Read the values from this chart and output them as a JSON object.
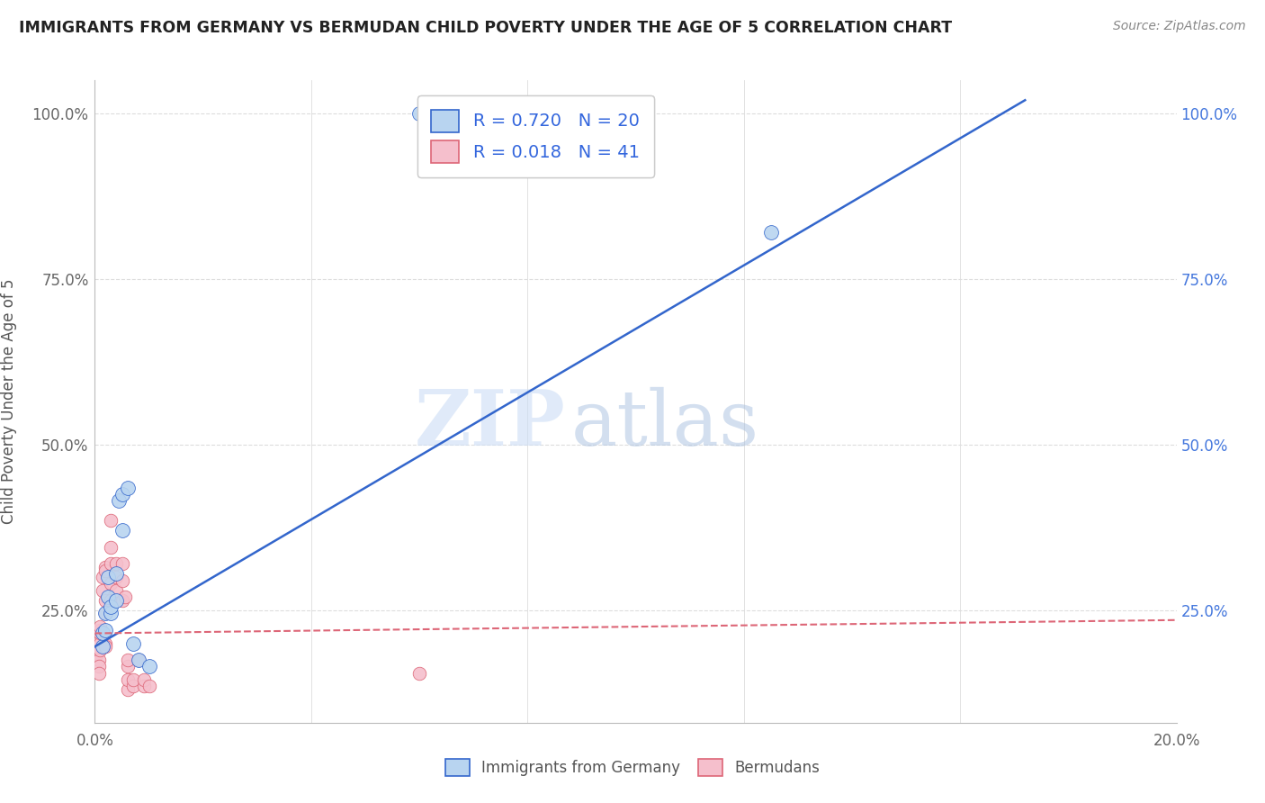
{
  "title": "IMMIGRANTS FROM GERMANY VS BERMUDAN CHILD POVERTY UNDER THE AGE OF 5 CORRELATION CHART",
  "source": "Source: ZipAtlas.com",
  "ylabel": "Child Poverty Under the Age of 5",
  "legend_labels": [
    "Immigrants from Germany",
    "Bermudans"
  ],
  "r_blue": 0.72,
  "n_blue": 20,
  "r_pink": 0.018,
  "n_pink": 41,
  "blue_color": "#b8d4f0",
  "pink_color": "#f5bfcc",
  "line_blue": "#3366cc",
  "line_pink": "#dd6677",
  "watermark_zip": "ZIP",
  "watermark_atlas": "atlas",
  "blue_line_x0": 0.0,
  "blue_line_y0": 0.195,
  "blue_line_x1": 0.172,
  "blue_line_y1": 1.02,
  "pink_line_x0": 0.0,
  "pink_line_y0": 0.215,
  "pink_line_x1": 0.2,
  "pink_line_y1": 0.235,
  "blue_points_x": [
    0.0015,
    0.0015,
    0.002,
    0.002,
    0.0025,
    0.0025,
    0.003,
    0.003,
    0.004,
    0.004,
    0.0045,
    0.005,
    0.005,
    0.006,
    0.007,
    0.008,
    0.01,
    0.06,
    0.062,
    0.125
  ],
  "blue_points_y": [
    0.195,
    0.215,
    0.22,
    0.245,
    0.27,
    0.3,
    0.245,
    0.255,
    0.265,
    0.305,
    0.415,
    0.425,
    0.37,
    0.435,
    0.2,
    0.175,
    0.165,
    1.0,
    1.0,
    0.82
  ],
  "pink_points_x": [
    0.0005,
    0.0005,
    0.0007,
    0.0007,
    0.0008,
    0.001,
    0.001,
    0.001,
    0.001,
    0.001,
    0.0015,
    0.0015,
    0.002,
    0.002,
    0.002,
    0.002,
    0.002,
    0.002,
    0.003,
    0.003,
    0.003,
    0.003,
    0.003,
    0.004,
    0.004,
    0.004,
    0.005,
    0.005,
    0.005,
    0.0055,
    0.006,
    0.006,
    0.006,
    0.006,
    0.007,
    0.007,
    0.008,
    0.009,
    0.009,
    0.01,
    0.06
  ],
  "pink_points_y": [
    0.2,
    0.185,
    0.175,
    0.165,
    0.155,
    0.2,
    0.215,
    0.22,
    0.225,
    0.19,
    0.28,
    0.3,
    0.315,
    0.31,
    0.2,
    0.195,
    0.245,
    0.265,
    0.385,
    0.345,
    0.32,
    0.29,
    0.265,
    0.3,
    0.32,
    0.28,
    0.295,
    0.265,
    0.32,
    0.27,
    0.13,
    0.145,
    0.165,
    0.175,
    0.135,
    0.145,
    0.175,
    0.135,
    0.145,
    0.135,
    0.155
  ],
  "xlim": [
    0.0,
    0.2
  ],
  "ylim": [
    0.08,
    1.05
  ],
  "x_ticks": [
    0.0,
    0.04,
    0.08,
    0.12,
    0.16,
    0.2
  ],
  "x_tick_labels": [
    "0.0%",
    "",
    "",
    "",
    "",
    "20.0%"
  ],
  "y_ticks_left": [
    0.25,
    0.5,
    0.75,
    1.0
  ],
  "y_tick_labels_left": [
    "25.0%",
    "50.0%",
    "75.0%",
    "100.0%"
  ],
  "y_ticks_right": [
    0.25,
    0.5,
    0.75,
    1.0
  ],
  "y_tick_labels_right": [
    "25.0%",
    "50.0%",
    "75.0%",
    "100.0%"
  ],
  "background_color": "#ffffff",
  "grid_color": "#dddddd"
}
